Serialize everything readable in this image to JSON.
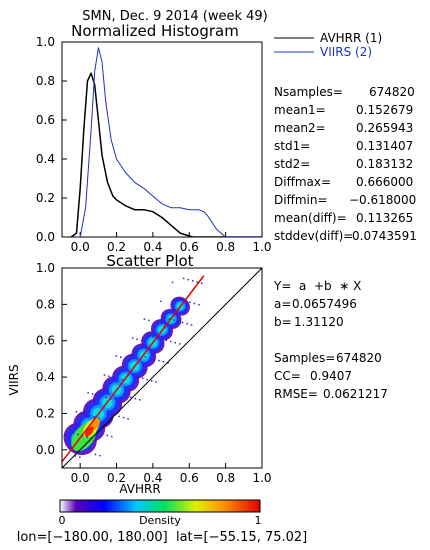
{
  "header": {
    "title": "SMN,  Dec. 9 2014 (week 49)"
  },
  "histogram": {
    "title": "Normalized Histogram",
    "legend": [
      {
        "label": "AVHRR (1)",
        "color": "#000000"
      },
      {
        "label": "VIIRS (2)",
        "color": "#2030c8"
      }
    ],
    "xlim": [
      -0.1,
      1.0
    ],
    "ylim": [
      0.0,
      1.0
    ],
    "xticks": [
      "0.0",
      "0.2",
      "0.4",
      "0.6",
      "0.8",
      "1.0"
    ],
    "yticks": [
      "0.0",
      "0.2",
      "0.4",
      "0.6",
      "0.8",
      "1.0"
    ]
  },
  "stats": [
    {
      "label": "Nsamples=",
      "value": "674820"
    },
    {
      "label": "mean1=",
      "value": "0.152679"
    },
    {
      "label": "mean2=",
      "value": "0.265943"
    },
    {
      "label": "std1=",
      "value": "0.131407"
    },
    {
      "label": "std2=",
      "value": "0.183132"
    },
    {
      "label": "Diffmax=",
      "value": "0.666000"
    },
    {
      "label": "Diffmin=",
      "value": "−0.618000"
    },
    {
      "label": "mean(diff)=",
      "value": "0.113265"
    },
    {
      "label": "stddev(diff)=",
      "value": "0.0743591"
    }
  ],
  "scatter": {
    "title": "Scatter Plot",
    "xlabel": "AVHRR",
    "ylabel": "VIIRS",
    "xlim": [
      -0.1,
      1.0
    ],
    "ylim": [
      -0.1,
      1.0
    ],
    "xticks": [
      "0.0",
      "0.2",
      "0.4",
      "0.6",
      "0.8",
      "1.0"
    ],
    "yticks": [
      "0.0",
      "0.2",
      "0.4",
      "0.6",
      "0.8",
      "1.0"
    ],
    "fit_eq": "Y=  a  +b  ∗ X",
    "fit": [
      {
        "label": "a=",
        "value": "0.0657496"
      },
      {
        "label": "b=",
        "value": "1.31120"
      }
    ],
    "metrics": [
      {
        "label": "Samples=",
        "value": "674820"
      },
      {
        "label": "CC=",
        "value": "0.9407"
      },
      {
        "label": "RMSE=",
        "value": "0.0621217"
      }
    ]
  },
  "colorbar": {
    "label": "Density",
    "min": "0",
    "max": "1"
  },
  "footer": {
    "text": "lon=[−180.00, 180.00]  lat=[−55.15, 75.02]"
  },
  "chart_data": [
    {
      "type": "line",
      "title": "Normalized Histogram",
      "xlim": [
        -0.1,
        1.0
      ],
      "ylim": [
        0.0,
        1.0
      ],
      "series": [
        {
          "name": "AVHRR (1)",
          "color": "#000000",
          "x": [
            -0.05,
            -0.02,
            0.0,
            0.02,
            0.04,
            0.06,
            0.08,
            0.1,
            0.12,
            0.15,
            0.18,
            0.2,
            0.25,
            0.3,
            0.35,
            0.4,
            0.45,
            0.5,
            0.55,
            0.6,
            0.62,
            0.65,
            0.7,
            0.8,
            1.0
          ],
          "y": [
            0.0,
            0.02,
            0.25,
            0.55,
            0.8,
            0.84,
            0.78,
            0.6,
            0.42,
            0.28,
            0.21,
            0.19,
            0.16,
            0.14,
            0.14,
            0.13,
            0.1,
            0.06,
            0.02,
            0.005,
            0.0,
            0.0,
            0.0,
            0.0,
            0.0
          ]
        },
        {
          "name": "VIIRS (2)",
          "color": "#2030c8",
          "x": [
            -0.02,
            0.0,
            0.03,
            0.06,
            0.08,
            0.1,
            0.12,
            0.14,
            0.17,
            0.2,
            0.25,
            0.3,
            0.35,
            0.4,
            0.45,
            0.5,
            0.55,
            0.6,
            0.65,
            0.68,
            0.7,
            0.75,
            0.8,
            1.0
          ],
          "y": [
            0.0,
            0.0,
            0.15,
            0.55,
            0.85,
            0.97,
            0.9,
            0.7,
            0.5,
            0.4,
            0.33,
            0.28,
            0.25,
            0.21,
            0.17,
            0.15,
            0.15,
            0.14,
            0.14,
            0.13,
            0.11,
            0.04,
            0.0,
            0.0
          ]
        }
      ]
    },
    {
      "type": "scatter",
      "title": "Scatter Plot",
      "xlabel": "AVHRR",
      "ylabel": "VIIRS",
      "xlim": [
        -0.1,
        1.0
      ],
      "ylim": [
        -0.1,
        1.0
      ],
      "density_ridge": [
        [
          0.0,
          0.06
        ],
        [
          0.05,
          0.13
        ],
        [
          0.1,
          0.2
        ],
        [
          0.15,
          0.26
        ],
        [
          0.2,
          0.33
        ],
        [
          0.25,
          0.39
        ],
        [
          0.3,
          0.46
        ],
        [
          0.35,
          0.52
        ],
        [
          0.4,
          0.59
        ],
        [
          0.45,
          0.66
        ],
        [
          0.5,
          0.72
        ],
        [
          0.55,
          0.79
        ]
      ],
      "fit_line": {
        "a": 0.0657496,
        "b": 1.3112,
        "color": "#e00000"
      },
      "reference_line": "one-to-one",
      "colormap": "rainbow"
    }
  ]
}
